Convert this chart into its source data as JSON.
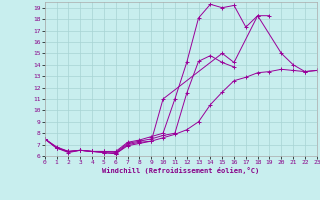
{
  "xlabel": "Windchill (Refroidissement éolien,°C)",
  "bg_color": "#c8eeee",
  "grid_color": "#a8d4d4",
  "line_color": "#990099",
  "tick_color": "#880088",
  "xlim": [
    0,
    23
  ],
  "ylim": [
    6,
    19.5
  ],
  "xticks": [
    0,
    1,
    2,
    3,
    4,
    5,
    6,
    7,
    8,
    9,
    10,
    11,
    12,
    13,
    14,
    15,
    16,
    17,
    18,
    19,
    20,
    21,
    22,
    23
  ],
  "yticks": [
    6,
    7,
    8,
    9,
    10,
    11,
    12,
    13,
    14,
    15,
    16,
    17,
    18,
    19
  ],
  "series": [
    {
      "x": [
        0,
        1,
        2,
        3,
        4,
        5,
        6,
        7,
        8,
        9,
        10,
        11,
        12,
        13,
        14,
        15,
        16,
        17,
        18,
        19
      ],
      "y": [
        7.5,
        6.8,
        6.4,
        6.5,
        6.4,
        6.4,
        6.4,
        7.2,
        7.4,
        7.7,
        8.0,
        11.0,
        14.2,
        18.1,
        19.3,
        19.0,
        19.2,
        17.3,
        18.3,
        18.3
      ]
    },
    {
      "x": [
        0,
        1,
        2,
        3,
        4,
        5,
        6,
        7,
        8,
        9,
        10,
        11,
        12,
        13,
        14,
        15,
        16
      ],
      "y": [
        7.5,
        6.7,
        6.4,
        6.5,
        6.4,
        6.4,
        6.3,
        7.1,
        7.3,
        7.5,
        7.8,
        8.0,
        11.5,
        14.3,
        14.8,
        14.2,
        13.8
      ]
    },
    {
      "x": [
        0,
        1,
        2,
        3,
        4,
        5,
        6,
        7,
        8,
        9,
        10,
        15,
        16,
        18,
        20,
        21,
        22,
        23
      ],
      "y": [
        7.5,
        6.7,
        6.4,
        6.5,
        6.4,
        6.3,
        6.2,
        7.0,
        7.2,
        7.3,
        11.0,
        15.0,
        14.2,
        18.3,
        15.0,
        14.0,
        13.4,
        13.5
      ]
    },
    {
      "x": [
        0,
        1,
        2,
        3,
        4,
        5,
        6,
        7,
        8,
        9,
        10,
        11,
        12,
        13,
        14,
        15,
        16,
        17,
        18,
        19,
        20,
        21,
        22,
        23
      ],
      "y": [
        7.5,
        6.7,
        6.3,
        6.5,
        6.4,
        6.3,
        6.2,
        6.9,
        7.1,
        7.3,
        7.6,
        7.9,
        8.3,
        9.0,
        10.5,
        11.6,
        12.6,
        12.9,
        13.3,
        13.4,
        13.6,
        13.5,
        13.4,
        13.5
      ]
    }
  ]
}
